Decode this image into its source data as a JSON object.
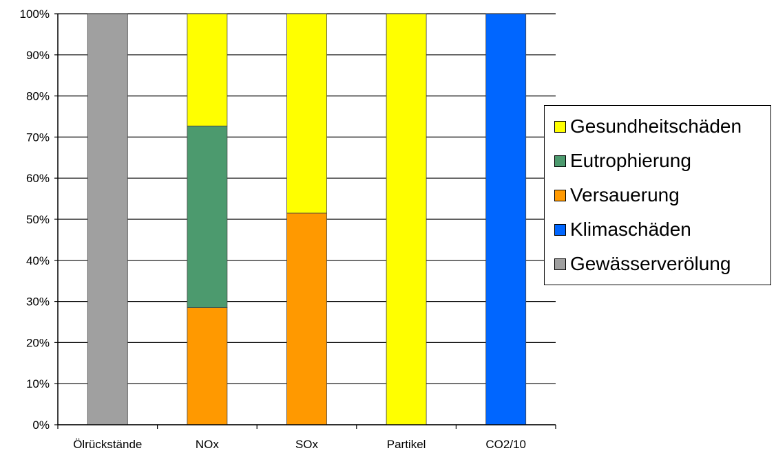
{
  "chart_data": {
    "type": "bar",
    "stacked": true,
    "categories": [
      "Ölrückstände",
      "NOx",
      "SOx",
      "Partikel",
      "CO2/10"
    ],
    "y_tick_labels": [
      "0%",
      "10%",
      "20%",
      "30%",
      "40%",
      "50%",
      "60%",
      "70%",
      "80%",
      "90%",
      "100%"
    ],
    "ylim": [
      0,
      100
    ],
    "grid": true,
    "legend_position": "right",
    "series": [
      {
        "name": "Gewässerverölung",
        "color": "#a0a0a0",
        "values": [
          100,
          0,
          0,
          0,
          0
        ]
      },
      {
        "name": "Klimaschäden",
        "color": "#0066ff",
        "values": [
          0,
          0,
          0,
          0,
          100
        ]
      },
      {
        "name": "Versauerung",
        "color": "#ff9900",
        "values": [
          0,
          28.5,
          51.5,
          0,
          0
        ]
      },
      {
        "name": "Eutrophierung",
        "color": "#4c9a6e",
        "values": [
          0,
          44.2,
          0,
          0,
          0
        ]
      },
      {
        "name": "Gesundheitschäden",
        "color": "#ffff00",
        "values": [
          0,
          27.3,
          48.5,
          100,
          0
        ]
      }
    ],
    "legend_order": [
      "Gesundheitschäden",
      "Eutrophierung",
      "Versauerung",
      "Klimaschäden",
      "Gewässerverölung"
    ]
  }
}
